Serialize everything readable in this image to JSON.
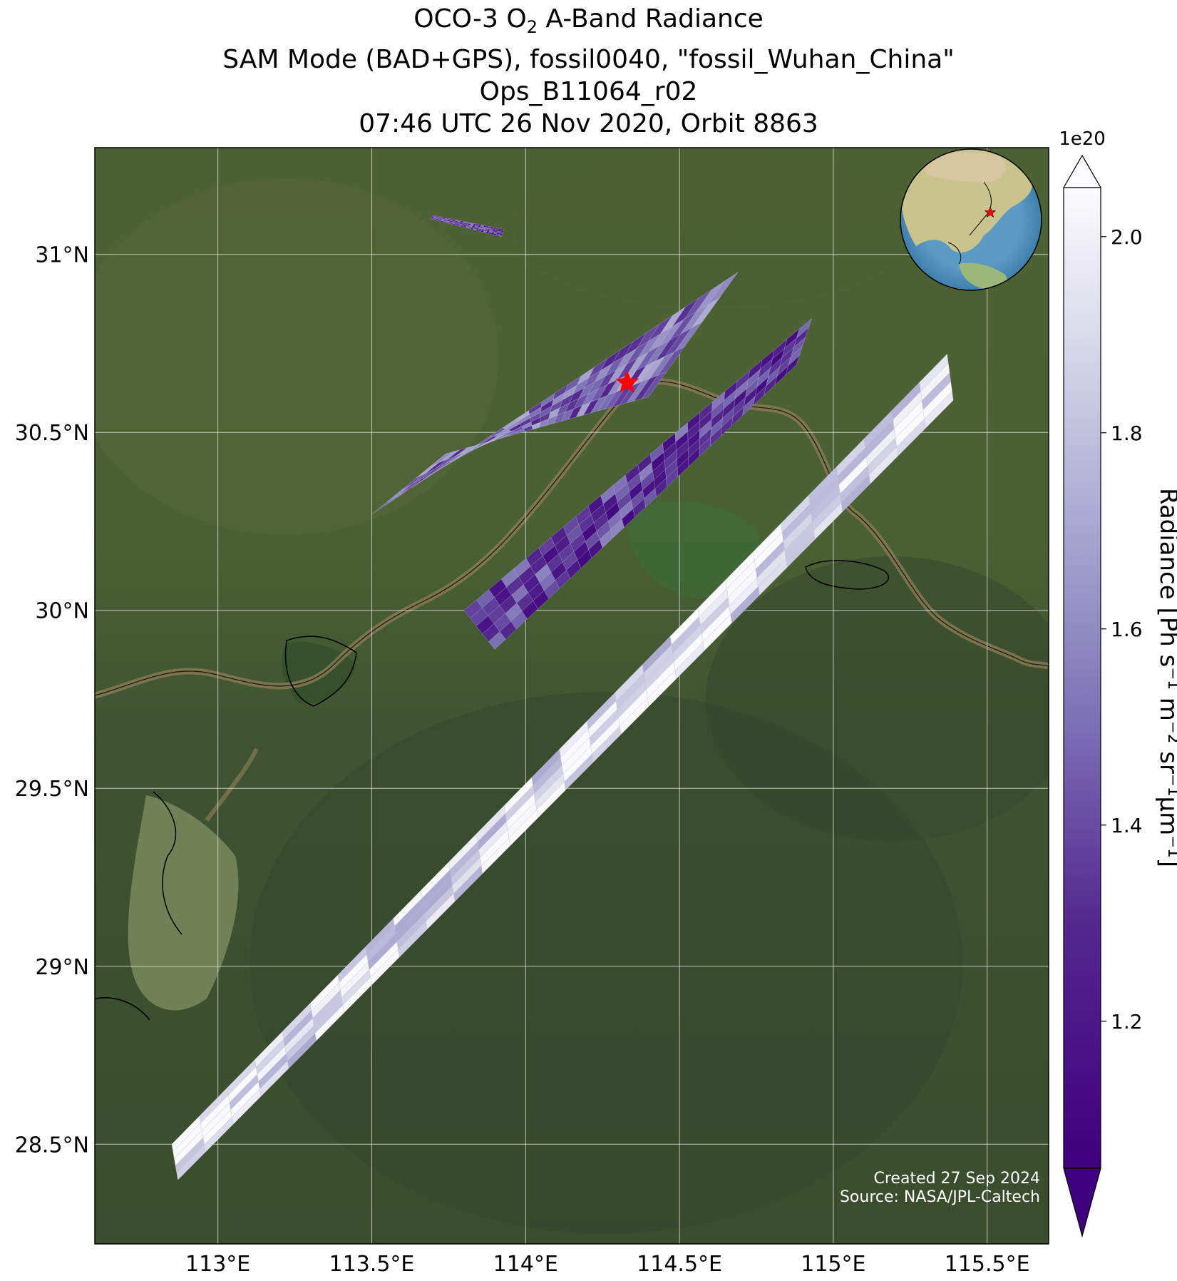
{
  "title": {
    "line1_pre": "OCO-3 O",
    "line1_sub": "2",
    "line1_post": " A-Band Radiance",
    "line2": "SAM Mode (BAD+GPS), fossil0040, \"fossil_Wuhan_China\"",
    "line3": "Ops_B11064_r02",
    "line4": "07:46 UTC 26 Nov 2020, Orbit 8863"
  },
  "map": {
    "lon_range": [
      112.6,
      115.7
    ],
    "lat_range": [
      28.22,
      31.3
    ],
    "lat_ticks": [
      {
        "value": 31.0,
        "label": "31°N"
      },
      {
        "value": 30.5,
        "label": "30.5°N"
      },
      {
        "value": 30.0,
        "label": "30°N"
      },
      {
        "value": 29.5,
        "label": "29.5°N"
      },
      {
        "value": 29.0,
        "label": "29°N"
      },
      {
        "value": 28.5,
        "label": "28.5°N"
      }
    ],
    "lon_ticks": [
      {
        "value": 113.0,
        "label": "113°E"
      },
      {
        "value": 113.5,
        "label": "113.5°E"
      },
      {
        "value": 114.0,
        "label": "114°E"
      },
      {
        "value": 114.5,
        "label": "114.5°E"
      },
      {
        "value": 115.0,
        "label": "115°E"
      },
      {
        "value": 115.5,
        "label": "115.5°E"
      }
    ],
    "gridlines": true,
    "target": {
      "name": "fossil_Wuhan_China",
      "lon": 114.33,
      "lat": 30.64,
      "marker": "star-icon",
      "color": "#ff0000"
    },
    "inset_globe": {
      "placement": "top-right",
      "marker": "star-icon"
    },
    "credit_line1": "Created 27 Sep 2024",
    "credit_line2": "Source: NASA/JPL-Caltech"
  },
  "chart_data": {
    "type": "heatmap",
    "variable": "O2 A-Band Radiance",
    "units_exponent": "1e20",
    "colormap": "Purples_r",
    "colors": {
      "low": "#3f007d",
      "mid": "#7f78b8",
      "high": "#fcfbfd",
      "target_star": "#ff0000"
    },
    "swaths": [
      {
        "name": "swath-1",
        "corners_lonlat": [
          [
            113.7,
            31.11
          ],
          [
            113.93,
            31.07
          ],
          [
            113.92,
            31.05
          ],
          [
            113.69,
            31.1
          ]
        ],
        "mean_value": 1.3
      },
      {
        "name": "swath-2",
        "corners_lonlat": [
          [
            113.5,
            30.27
          ],
          [
            114.69,
            30.95
          ],
          [
            114.4,
            30.6
          ],
          [
            113.74,
            30.44
          ]
        ],
        "mean_value": 1.5
      },
      {
        "name": "swath-3",
        "corners_lonlat": [
          [
            113.8,
            30.0
          ],
          [
            114.93,
            30.82
          ],
          [
            114.88,
            30.69
          ],
          [
            113.9,
            29.89
          ]
        ],
        "mean_value": 1.35
      },
      {
        "name": "swath-4",
        "corners_lonlat": [
          [
            112.85,
            28.5
          ],
          [
            115.37,
            30.72
          ],
          [
            115.39,
            30.59
          ],
          [
            112.87,
            28.4
          ]
        ],
        "mean_value": 1.95
      }
    ],
    "colorbar": {
      "label": "Radiance [Ph s⁻¹ m⁻² sr⁻¹μm⁻¹]",
      "offset_label": "1e20",
      "min": 1.05,
      "max": 2.05,
      "extend": "both",
      "ticks": [
        {
          "value": 1.2,
          "label": "1.2"
        },
        {
          "value": 1.4,
          "label": "1.4"
        },
        {
          "value": 1.6,
          "label": "1.6"
        },
        {
          "value": 1.8,
          "label": "1.8"
        },
        {
          "value": 2.0,
          "label": "2.0"
        }
      ]
    }
  }
}
